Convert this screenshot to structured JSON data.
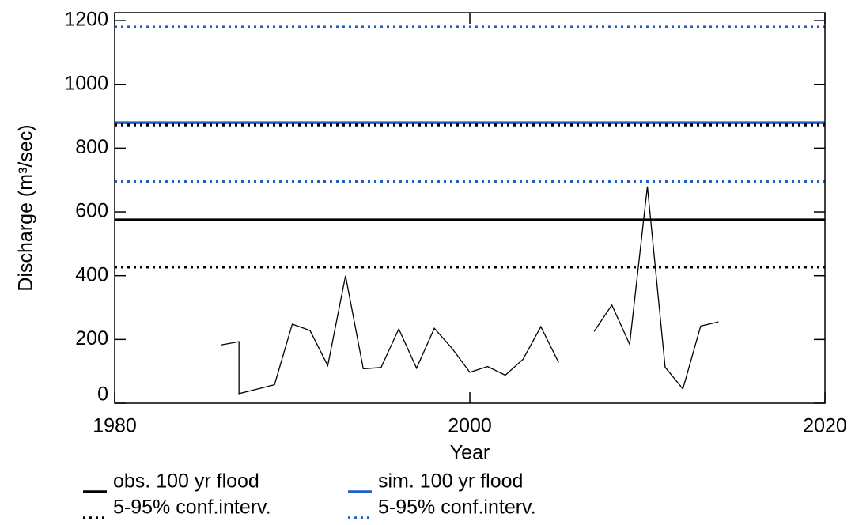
{
  "chart_data": {
    "type": "line",
    "x_label": "Year",
    "y_label": "Discharge (m³/sec)",
    "xlim": [
      1980,
      2020
    ],
    "xticks": [
      1980,
      2000,
      2020
    ],
    "ylim": [
      0,
      1225
    ],
    "yticks": [
      0,
      200,
      400,
      600,
      800,
      1000,
      1200
    ],
    "series": [
      {
        "color": "#000000",
        "x": [
          1986,
          1987,
          1987,
          1989,
          1990,
          1991,
          1992,
          1993,
          1994,
          1995,
          1996,
          1997,
          1998,
          1999,
          2000,
          2001,
          2002,
          2003,
          2004,
          2005,
          2006,
          2007,
          2008,
          2009,
          2010,
          2011,
          2012,
          2013,
          2014
        ],
        "values": [
          183,
          193,
          30,
          58,
          248,
          228,
          118,
          400,
          108,
          112,
          233,
          110,
          235,
          172,
          97,
          115,
          88,
          138,
          240,
          128,
          null,
          225,
          308,
          185,
          680,
          113,
          45,
          242,
          255
        ]
      }
    ],
    "reference_lines": [
      {
        "name": "obs. 100 yr flood",
        "color": "#000000",
        "style": "solid",
        "value": 575
      },
      {
        "name": "5-95% conf.interv.",
        "color": "#000000",
        "style": "dotted",
        "value": 427
      },
      {
        "name": "sim. 100 yr flood",
        "color": "#1f5fc8",
        "style": "solid",
        "value": 880
      },
      {
        "name": "5-95% conf.interv.",
        "color": "#1f5fc8",
        "style": "dotted",
        "value": 695
      },
      {
        "color": "#1f5fc8",
        "style": "dotted",
        "value": 1180
      },
      {
        "color": "#000000",
        "style": "dotted",
        "value": 873
      }
    ]
  }
}
